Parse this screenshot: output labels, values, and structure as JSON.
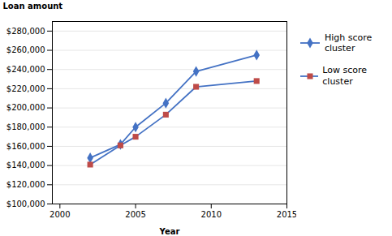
{
  "chart_data": {
    "type": "line",
    "xlabel": "Year",
    "ylabel": "Loan amount",
    "x": [
      2002,
      2004,
      2005,
      2007,
      2009,
      2013
    ],
    "series": [
      {
        "name": "High score\ncluster",
        "color": "#4472C4",
        "marker": "diamond",
        "values": [
          148000,
          162000,
          180000,
          205000,
          238000,
          255000
        ]
      },
      {
        "name": "Low score cluster",
        "color": "#4472C4",
        "marker": "square",
        "colors": [
          "#BE4B48",
          "#BE4B48",
          "#BE4B48",
          "#BE4B48",
          "#BE4B48",
          "#BE4B48"
        ],
        "values": [
          141000,
          161000,
          170000,
          193000,
          222000,
          228000
        ]
      }
    ],
    "xlim": [
      1999.5,
      2015
    ],
    "xticks": [
      2000,
      2005,
      2010,
      2015
    ],
    "ylim": [
      100000,
      290000
    ],
    "yticks": [
      {
        "value": 100000,
        "label": "$100,000"
      },
      {
        "value": 120000,
        "label": "$120,000"
      },
      {
        "value": 140000,
        "label": "$140,000"
      },
      {
        "value": 160000,
        "label": "$160,000"
      },
      {
        "value": 180000,
        "label": "$180,000"
      },
      {
        "value": 200000,
        "label": "$200,000"
      },
      {
        "value": 220000,
        "label": "$220,000"
      },
      {
        "value": 240000,
        "label": "$240,000"
      },
      {
        "value": 260000,
        "label": "$260,000"
      },
      {
        "value": 280000,
        "label": "$280,000"
      }
    ],
    "grid": true,
    "legend": "right"
  }
}
